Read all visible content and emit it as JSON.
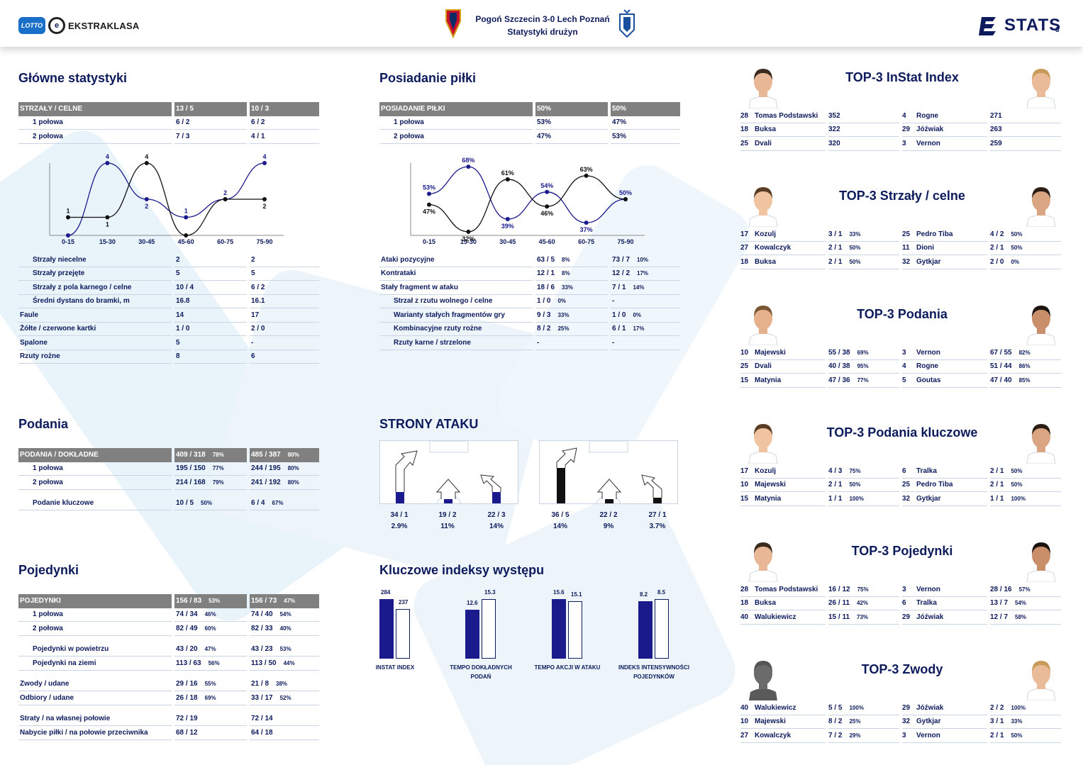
{
  "header": {
    "lotto": "LOTTO",
    "league": "EKSTRAKLASA",
    "match_line1": "Pogoń Szczecin 3-0  Lech Poznań",
    "match_line2": "Statystyki drużyn",
    "stats_brand": "STATS",
    "page_number": "3"
  },
  "main_stats": {
    "title": "Główne statystyki",
    "header": {
      "label": "STRZAŁY / CELNE",
      "home": "13 / 5",
      "away": "10 / 3"
    },
    "halves": [
      {
        "label": "1 połowa",
        "home": "6 / 2",
        "away": "6 / 2"
      },
      {
        "label": "2 połowa",
        "home": "7 / 3",
        "away": "4 / 1"
      }
    ],
    "rows": [
      {
        "label": "Strzały niecelne",
        "home": "2",
        "away": "2",
        "indent": true
      },
      {
        "label": "Strzały przejęte",
        "home": "5",
        "away": "5",
        "indent": true
      },
      {
        "label": "Strzały z pola karnego / celne",
        "home": "10 / 4",
        "away": "6 / 2",
        "indent": true
      },
      {
        "label": "Średni dystans do bramki, m",
        "home": "16.8",
        "away": "16.1",
        "indent": true
      },
      {
        "label": "Faule",
        "home": "14",
        "away": "17",
        "indent": false
      },
      {
        "label": "Żółte / czerwone kartki",
        "home": "1 / 0",
        "away": "2 / 0",
        "indent": false
      },
      {
        "label": "Spalone",
        "home": "5",
        "away": "-",
        "indent": false
      },
      {
        "label": "Rzuty rożne",
        "home": "8",
        "away": "6",
        "indent": false
      }
    ]
  },
  "possession": {
    "title": "Posiadanie piłki",
    "header": {
      "label": "POSIADANIE PIŁKI",
      "home": "50%",
      "away": "50%"
    },
    "halves": [
      {
        "label": "1 połowa",
        "home": "53%",
        "away": "47%"
      },
      {
        "label": "2 połowa",
        "home": "47%",
        "away": "53%"
      }
    ],
    "rows": [
      {
        "label": "Ataki pozycyjne",
        "home": "63 / 5",
        "home_pct": "8%",
        "away": "73 / 7",
        "away_pct": "10%",
        "indent": false
      },
      {
        "label": "Kontrataki",
        "home": "12 / 1",
        "home_pct": "8%",
        "away": "12 / 2",
        "away_pct": "17%",
        "indent": false
      },
      {
        "label": "Stały fragment w ataku",
        "home": "18 / 6",
        "home_pct": "33%",
        "away": "7 / 1",
        "away_pct": "14%",
        "indent": false
      },
      {
        "label": "Strzał z rzutu wolnego / celne",
        "home": "1 / 0",
        "home_pct": "0%",
        "away": "-",
        "away_pct": "",
        "indent": true
      },
      {
        "label": "Warianty stałych fragmentów gry",
        "home": "9 / 3",
        "home_pct": "33%",
        "away": "1 / 0",
        "away_pct": "0%",
        "indent": true
      },
      {
        "label": "Kombinacyjne rzuty rożne",
        "home": "8 / 2",
        "home_pct": "25%",
        "away": "6 / 1",
        "away_pct": "17%",
        "indent": true
      },
      {
        "label": "Rzuty karne / strzelone",
        "home": "-",
        "home_pct": "",
        "away": "-",
        "away_pct": "",
        "indent": true
      }
    ]
  },
  "passes": {
    "title": "Podania",
    "header": {
      "label": "PODANIA / DOKŁADNE",
      "home": "409 / 318",
      "home_pct": "78%",
      "away": "485 / 387",
      "away_pct": "80%"
    },
    "rows": [
      {
        "label": "1 połowa",
        "home": "195 / 150",
        "home_pct": "77%",
        "away": "244 / 195",
        "away_pct": "80%"
      },
      {
        "label": "2 połowa",
        "home": "214 / 168",
        "home_pct": "79%",
        "away": "241 / 192",
        "away_pct": "80%"
      },
      {
        "label": "Podanie kluczowe",
        "home": "10 / 5",
        "home_pct": "50%",
        "away": "6 / 4",
        "away_pct": "67%"
      }
    ]
  },
  "duels": {
    "title": "Pojedynki",
    "header": {
      "label": "POJEDYNKI",
      "home": "156 / 83",
      "home_pct": "53%",
      "away": "156 / 73",
      "away_pct": "47%"
    },
    "rows": [
      {
        "label": "1 połowa",
        "home": "74 / 34",
        "home_pct": "46%",
        "away": "74 / 40",
        "away_pct": "54%",
        "indent": true
      },
      {
        "label": "2 połowa",
        "home": "82 / 49",
        "home_pct": "60%",
        "away": "82 / 33",
        "away_pct": "40%",
        "indent": true
      },
      {
        "label": "Pojedynki w powietrzu",
        "home": "43 / 20",
        "home_pct": "47%",
        "away": "43 / 23",
        "away_pct": "53%",
        "indent": true
      },
      {
        "label": "Pojedynki na ziemi",
        "home": "113 / 63",
        "home_pct": "56%",
        "away": "113 / 50",
        "away_pct": "44%",
        "indent": true
      },
      {
        "label": "Zwody / udane",
        "home": "29 / 16",
        "home_pct": "55%",
        "away": "21 / 8",
        "away_pct": "38%",
        "indent": false
      },
      {
        "label": "Odbiory / udane",
        "home": "26 / 18",
        "home_pct": "69%",
        "away": "33 / 17",
        "away_pct": "52%",
        "indent": false
      },
      {
        "label": "Straty / na własnej połowie",
        "home": "72 / 19",
        "home_pct": "",
        "away": "72 / 14",
        "away_pct": "",
        "indent": false
      },
      {
        "label": "Nabycie piłki / na połowie przeciwnika",
        "home": "68 / 12",
        "home_pct": "",
        "away": "64 / 18",
        "away_pct": "",
        "indent": false
      }
    ]
  },
  "attack_sides": {
    "title": "STRONY ATAKU",
    "home": [
      {
        "value": "34 / 1",
        "pct": "2.9%"
      },
      {
        "value": "19 / 2",
        "pct": "11%"
      },
      {
        "value": "22 / 3",
        "pct": "14%"
      }
    ],
    "away": [
      {
        "value": "36 / 5",
        "pct": "14%"
      },
      {
        "value": "22 / 2",
        "pct": "9%"
      },
      {
        "value": "27 / 1",
        "pct": "3.7%"
      }
    ]
  },
  "key_indices": {
    "title": "Kluczowe indeksy występu",
    "items": [
      {
        "label_line1": "INSTAT INDEX",
        "label_line2": "",
        "home": 284,
        "away": 237,
        "home_label": "284",
        "away_label": "237"
      },
      {
        "label_line1": "TEMPO DOKŁADNYCH",
        "label_line2": "PODAŃ",
        "home": 12.6,
        "away": 15.3,
        "home_label": "12.6",
        "away_label": "15.3"
      },
      {
        "label_line1": "TEMPO AKCJI W ATAKU",
        "label_line2": "",
        "home": 15.6,
        "away": 15.1,
        "home_label": "15.6",
        "away_label": "15.1"
      },
      {
        "label_line1": "INDEKS INTENSYWNOŚCI",
        "label_line2": "POJEDYNKÓW",
        "home": 8.2,
        "away": 8.5,
        "home_label": "8.2",
        "away_label": "8.5"
      }
    ]
  },
  "chart_data": [
    {
      "type": "line",
      "title": "",
      "categories": [
        "0-15",
        "15-30",
        "30-45",
        "45-60",
        "60-75",
        "75-90"
      ],
      "series": [
        {
          "name": "",
          "color": "#1a1a8c",
          "values": [
            0,
            4,
            2,
            1,
            2,
            4
          ],
          "labels": [
            "",
            "4",
            "2",
            "1",
            "2",
            "4"
          ]
        },
        {
          "name": "",
          "color": "#111111",
          "values": [
            1,
            1,
            4,
            0,
            2,
            2
          ],
          "labels": [
            "1",
            "1",
            "4",
            "",
            "",
            "2"
          ]
        }
      ],
      "ylim": [
        0,
        4
      ]
    },
    {
      "type": "line",
      "title": "",
      "categories": [
        "0-15",
        "15-30",
        "30-45",
        "45-60",
        "60-75",
        "75-90"
      ],
      "series": [
        {
          "name": "",
          "color": "#1a1a8c",
          "values": [
            53,
            68,
            39,
            54,
            37,
            50
          ],
          "labels": [
            "53%",
            "68%",
            "39%",
            "54%",
            "37%",
            "50%"
          ]
        },
        {
          "name": "",
          "color": "#111111",
          "values": [
            47,
            32,
            61,
            46,
            63,
            50
          ],
          "labels": [
            "47%",
            "32%",
            "61%",
            "46%",
            "63%",
            ""
          ]
        }
      ],
      "ylim": [
        30,
        70
      ]
    }
  ],
  "top_lists": [
    {
      "title": "TOP-3 InStat Index",
      "home": [
        {
          "num": "28",
          "name": "Tomas Podstawski",
          "val": "352",
          "pct": ""
        },
        {
          "num": "18",
          "name": "Buksa",
          "val": "322",
          "pct": ""
        },
        {
          "num": "25",
          "name": "Dvali",
          "val": "320",
          "pct": ""
        }
      ],
      "away": [
        {
          "num": "4",
          "name": "Rogne",
          "val": "271",
          "pct": ""
        },
        {
          "num": "29",
          "name": "Jóźwiak",
          "val": "263",
          "pct": ""
        },
        {
          "num": "3",
          "name": "Vernon",
          "val": "259",
          "pct": ""
        }
      ]
    },
    {
      "title": "TOP-3 Strzały / celne",
      "home": [
        {
          "num": "17",
          "name": "Kozulj",
          "val": "3 / 1",
          "pct": "33%"
        },
        {
          "num": "27",
          "name": "Kowalczyk",
          "val": "2 / 1",
          "pct": "50%"
        },
        {
          "num": "18",
          "name": "Buksa",
          "val": "2 / 1",
          "pct": "50%"
        }
      ],
      "away": [
        {
          "num": "25",
          "name": "Pedro Tiba",
          "val": "4 / 2",
          "pct": "50%"
        },
        {
          "num": "11",
          "name": "Dioni",
          "val": "2 / 1",
          "pct": "50%"
        },
        {
          "num": "32",
          "name": "Gytkjar",
          "val": "2 / 0",
          "pct": "0%"
        }
      ]
    },
    {
      "title": "TOP-3 Podania",
      "home": [
        {
          "num": "10",
          "name": "Majewski",
          "val": "55 / 38",
          "pct": "69%"
        },
        {
          "num": "25",
          "name": "Dvali",
          "val": "40 / 38",
          "pct": "95%"
        },
        {
          "num": "15",
          "name": "Matynia",
          "val": "47 / 36",
          "pct": "77%"
        }
      ],
      "away": [
        {
          "num": "3",
          "name": "Vernon",
          "val": "67 / 55",
          "pct": "82%"
        },
        {
          "num": "4",
          "name": "Rogne",
          "val": "51 / 44",
          "pct": "86%"
        },
        {
          "num": "5",
          "name": "Goutas",
          "val": "47 / 40",
          "pct": "85%"
        }
      ]
    },
    {
      "title": "TOP-3 Podania kluczowe",
      "home": [
        {
          "num": "17",
          "name": "Kozulj",
          "val": "4 / 3",
          "pct": "75%"
        },
        {
          "num": "10",
          "name": "Majewski",
          "val": "2 / 1",
          "pct": "50%"
        },
        {
          "num": "15",
          "name": "Matynia",
          "val": "1 / 1",
          "pct": "100%"
        }
      ],
      "away": [
        {
          "num": "6",
          "name": "Tralka",
          "val": "2 / 1",
          "pct": "50%"
        },
        {
          "num": "25",
          "name": "Pedro Tiba",
          "val": "2 / 1",
          "pct": "50%"
        },
        {
          "num": "32",
          "name": "Gytkjar",
          "val": "1 / 1",
          "pct": "100%"
        }
      ]
    },
    {
      "title": "TOP-3 Pojedynki",
      "home": [
        {
          "num": "28",
          "name": "Tomas Podstawski",
          "val": "16 / 12",
          "pct": "75%"
        },
        {
          "num": "18",
          "name": "Buksa",
          "val": "26 / 11",
          "pct": "42%"
        },
        {
          "num": "40",
          "name": "Walukiewicz",
          "val": "15 / 11",
          "pct": "73%"
        }
      ],
      "away": [
        {
          "num": "3",
          "name": "Vernon",
          "val": "28 / 16",
          "pct": "57%"
        },
        {
          "num": "6",
          "name": "Tralka",
          "val": "13 / 7",
          "pct": "54%"
        },
        {
          "num": "29",
          "name": "Jóźwiak",
          "val": "12 / 7",
          "pct": "58%"
        }
      ]
    },
    {
      "title": "TOP-3 Zwody",
      "home": [
        {
          "num": "40",
          "name": "Walukiewicz",
          "val": "5 / 5",
          "pct": "100%"
        },
        {
          "num": "10",
          "name": "Majewski",
          "val": "8 / 2",
          "pct": "25%"
        },
        {
          "num": "27",
          "name": "Kowalczyk",
          "val": "7 / 2",
          "pct": "29%"
        }
      ],
      "away": [
        {
          "num": "29",
          "name": "Jóźwiak",
          "val": "2 / 2",
          "pct": "100%"
        },
        {
          "num": "32",
          "name": "Gytkjar",
          "val": "3 / 1",
          "pct": "33%"
        },
        {
          "num": "3",
          "name": "Vernon",
          "val": "2 / 1",
          "pct": "50%"
        }
      ]
    }
  ],
  "colors": {
    "navy": "#0d1b5c",
    "home_series": "#1a1a8c",
    "away_series": "#111111",
    "header_gray": "#808080",
    "bg_shape": "#e8f3fa"
  }
}
